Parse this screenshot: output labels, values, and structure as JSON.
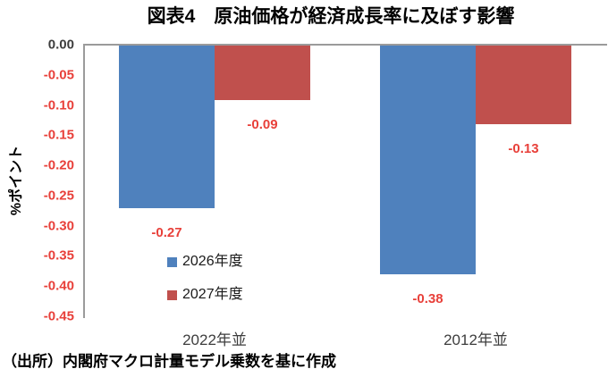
{
  "title": "図表4　原油価格が経済成長率に及ぼす影響",
  "source_note": "（出所）内閣府マクロ計量モデル乗数を基に作成",
  "chart_data": {
    "type": "bar",
    "title": "図表4　原油価格が経済成長率に及ぼす影響",
    "xlabel": "",
    "ylabel": "%ポイント",
    "ylim": [
      -0.45,
      0
    ],
    "yticks": [
      "0.00",
      "-0.05",
      "-0.10",
      "-0.15",
      "-0.20",
      "-0.25",
      "-0.30",
      "-0.35",
      "-0.40",
      "-0.45"
    ],
    "categories": [
      "2022年並",
      "2012年並"
    ],
    "series": [
      {
        "name": "2026年度",
        "color": "#4F81BD",
        "values": [
          -0.27,
          -0.38
        ],
        "labels": [
          "-0.27",
          "-0.38"
        ]
      },
      {
        "name": "2027年度",
        "color": "#C0504D",
        "values": [
          -0.09,
          -0.13
        ],
        "labels": [
          "-0.09",
          "-0.13"
        ]
      }
    ],
    "grid": false,
    "legend_position": "inside-bottom-left",
    "value_label_color": "#e8403a",
    "tick_color_zero": "#3d3d3d",
    "tick_color_negative": "#e8403a",
    "axis_color": "#9b9b9b"
  }
}
